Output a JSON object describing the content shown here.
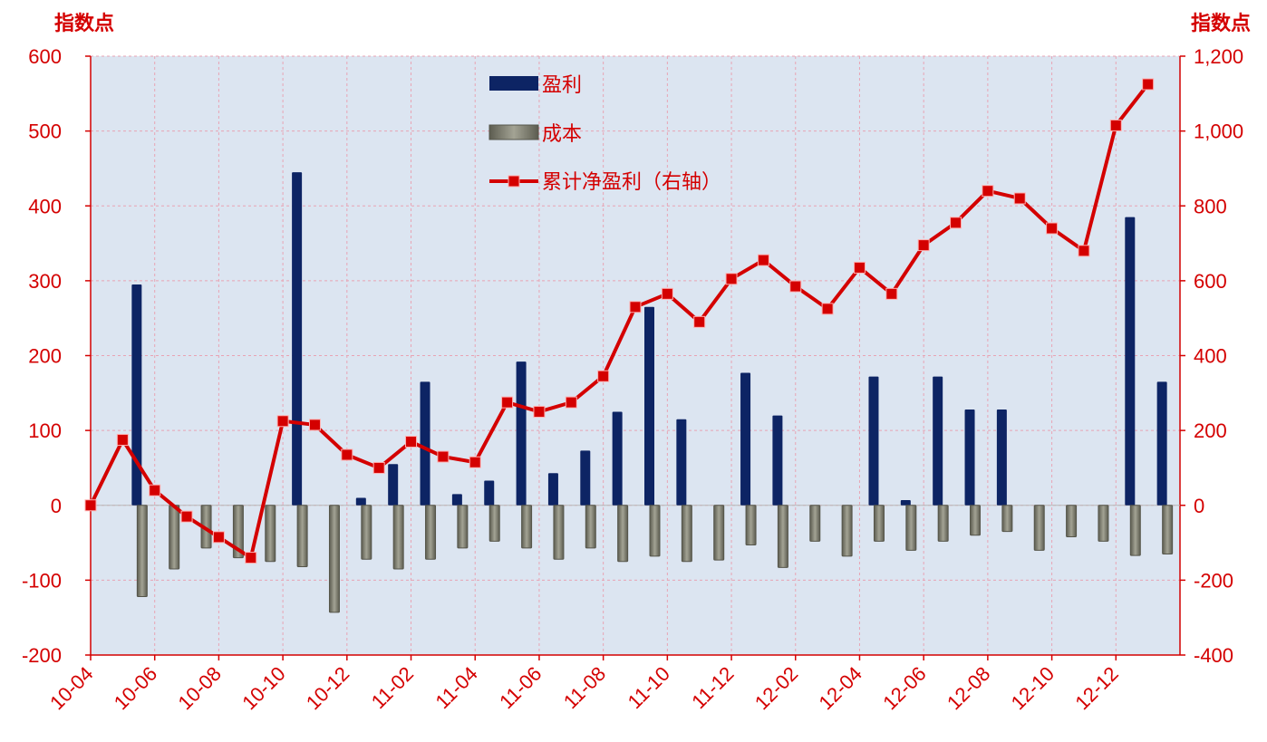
{
  "chart_data": {
    "type": "bar",
    "y_left_unit": "指数点",
    "y_right_unit": "指数点",
    "y_left_range": [
      -200,
      600
    ],
    "y_right_range": [
      -400,
      1200
    ],
    "y_left_ticks": [
      "600",
      "500",
      "400",
      "300",
      "200",
      "100",
      "0",
      "-100",
      "-200"
    ],
    "y_right_ticks": [
      "1,200",
      "1,000",
      "800",
      "600",
      "400",
      "200",
      "0",
      "-200",
      "-400"
    ],
    "x_tick_labels": [
      "10-04",
      "10-06",
      "10-08",
      "10-10",
      "10-12",
      "11-02",
      "11-04",
      "11-06",
      "11-08",
      "11-10",
      "11-12",
      "12-02",
      "12-04",
      "12-06",
      "12-08",
      "12-10",
      "12-12"
    ],
    "x": [
      "10-04",
      "10-05",
      "10-06",
      "10-07",
      "10-08",
      "10-09",
      "10-10",
      "10-11",
      "10-12",
      "11-01",
      "11-02",
      "11-03",
      "11-04",
      "11-05",
      "11-06",
      "11-07",
      "11-08",
      "11-09",
      "11-10",
      "11-11",
      "11-12",
      "12-01",
      "12-02",
      "12-03",
      "12-04",
      "12-05",
      "12-06",
      "12-07",
      "12-08",
      "12-09",
      "12-10",
      "12-11",
      "12-12",
      "13-01"
    ],
    "grid": true,
    "legend_position": "top-center",
    "series": [
      {
        "name": "盈利",
        "type": "bar",
        "axis": "left",
        "color": "#0d2464",
        "values": [
          0,
          295,
          0,
          0,
          0,
          0,
          445,
          0,
          10,
          55,
          165,
          15,
          33,
          192,
          43,
          73,
          125,
          265,
          115,
          0,
          177,
          120,
          0,
          0,
          172,
          7,
          172,
          128,
          128,
          0,
          0,
          0,
          385,
          165
        ]
      },
      {
        "name": "成本",
        "type": "bar",
        "axis": "left",
        "color": "#7f7f72",
        "values": [
          0,
          -122,
          -85,
          -57,
          -70,
          -75,
          -82,
          -143,
          -72,
          -85,
          -72,
          -57,
          -48,
          -57,
          -72,
          -57,
          -75,
          -68,
          -75,
          -73,
          -53,
          -83,
          -48,
          -68,
          -48,
          -60,
          -48,
          -40,
          -35,
          -60,
          -42,
          -48,
          -67,
          -65
        ]
      },
      {
        "name": "累计净盈利（右轴）",
        "type": "line",
        "axis": "right",
        "color": "#d40000",
        "values": [
          0,
          175,
          40,
          -30,
          -85,
          -140,
          225,
          215,
          135,
          100,
          170,
          130,
          115,
          275,
          250,
          275,
          345,
          530,
          565,
          490,
          605,
          655,
          585,
          525,
          635,
          565,
          695,
          755,
          840,
          820,
          740,
          680,
          1015,
          1125
        ]
      }
    ]
  }
}
